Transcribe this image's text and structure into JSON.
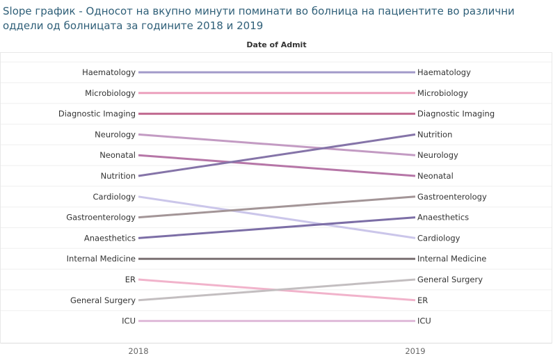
{
  "title": "Slope график - Односот на вкупно минути поминати во болница на пациентите во различни оддели од болницата за годините 2018 и 2019",
  "header": "Date of Admit",
  "chart_data": {
    "type": "line",
    "subtype": "slope",
    "x": [
      "2018",
      "2019"
    ],
    "value_kind": "rank",
    "series": [
      {
        "name": "Haematology",
        "values": [
          1,
          1
        ],
        "color": "#a29ac9"
      },
      {
        "name": "Microbiology",
        "values": [
          2,
          2
        ],
        "color": "#eba0bd"
      },
      {
        "name": "Diagnostic Imaging",
        "values": [
          3,
          3
        ],
        "color": "#c0688f"
      },
      {
        "name": "Neurology",
        "values": [
          4,
          5
        ],
        "color": "#c39bc3"
      },
      {
        "name": "Neonatal",
        "values": [
          5,
          6
        ],
        "color": "#b676a7"
      },
      {
        "name": "Nutrition",
        "values": [
          6,
          4
        ],
        "color": "#8574a8"
      },
      {
        "name": "Cardiology",
        "values": [
          7,
          9
        ],
        "color": "#cbc6ea"
      },
      {
        "name": "Gastroenterology",
        "values": [
          8,
          7
        ],
        "color": "#a39597"
      },
      {
        "name": "Anaesthetics",
        "values": [
          9,
          8
        ],
        "color": "#7c6ea6"
      },
      {
        "name": "Internal Medicine",
        "values": [
          10,
          10
        ],
        "color": "#7a7072"
      },
      {
        "name": "ER",
        "values": [
          11,
          12
        ],
        "color": "#f1b3cb"
      },
      {
        "name": "General Surgery",
        "values": [
          12,
          11
        ],
        "color": "#c3bec0"
      },
      {
        "name": "ICU",
        "values": [
          13,
          13
        ],
        "color": "#dfb9d9"
      }
    ],
    "grid": true,
    "legend": "none"
  }
}
